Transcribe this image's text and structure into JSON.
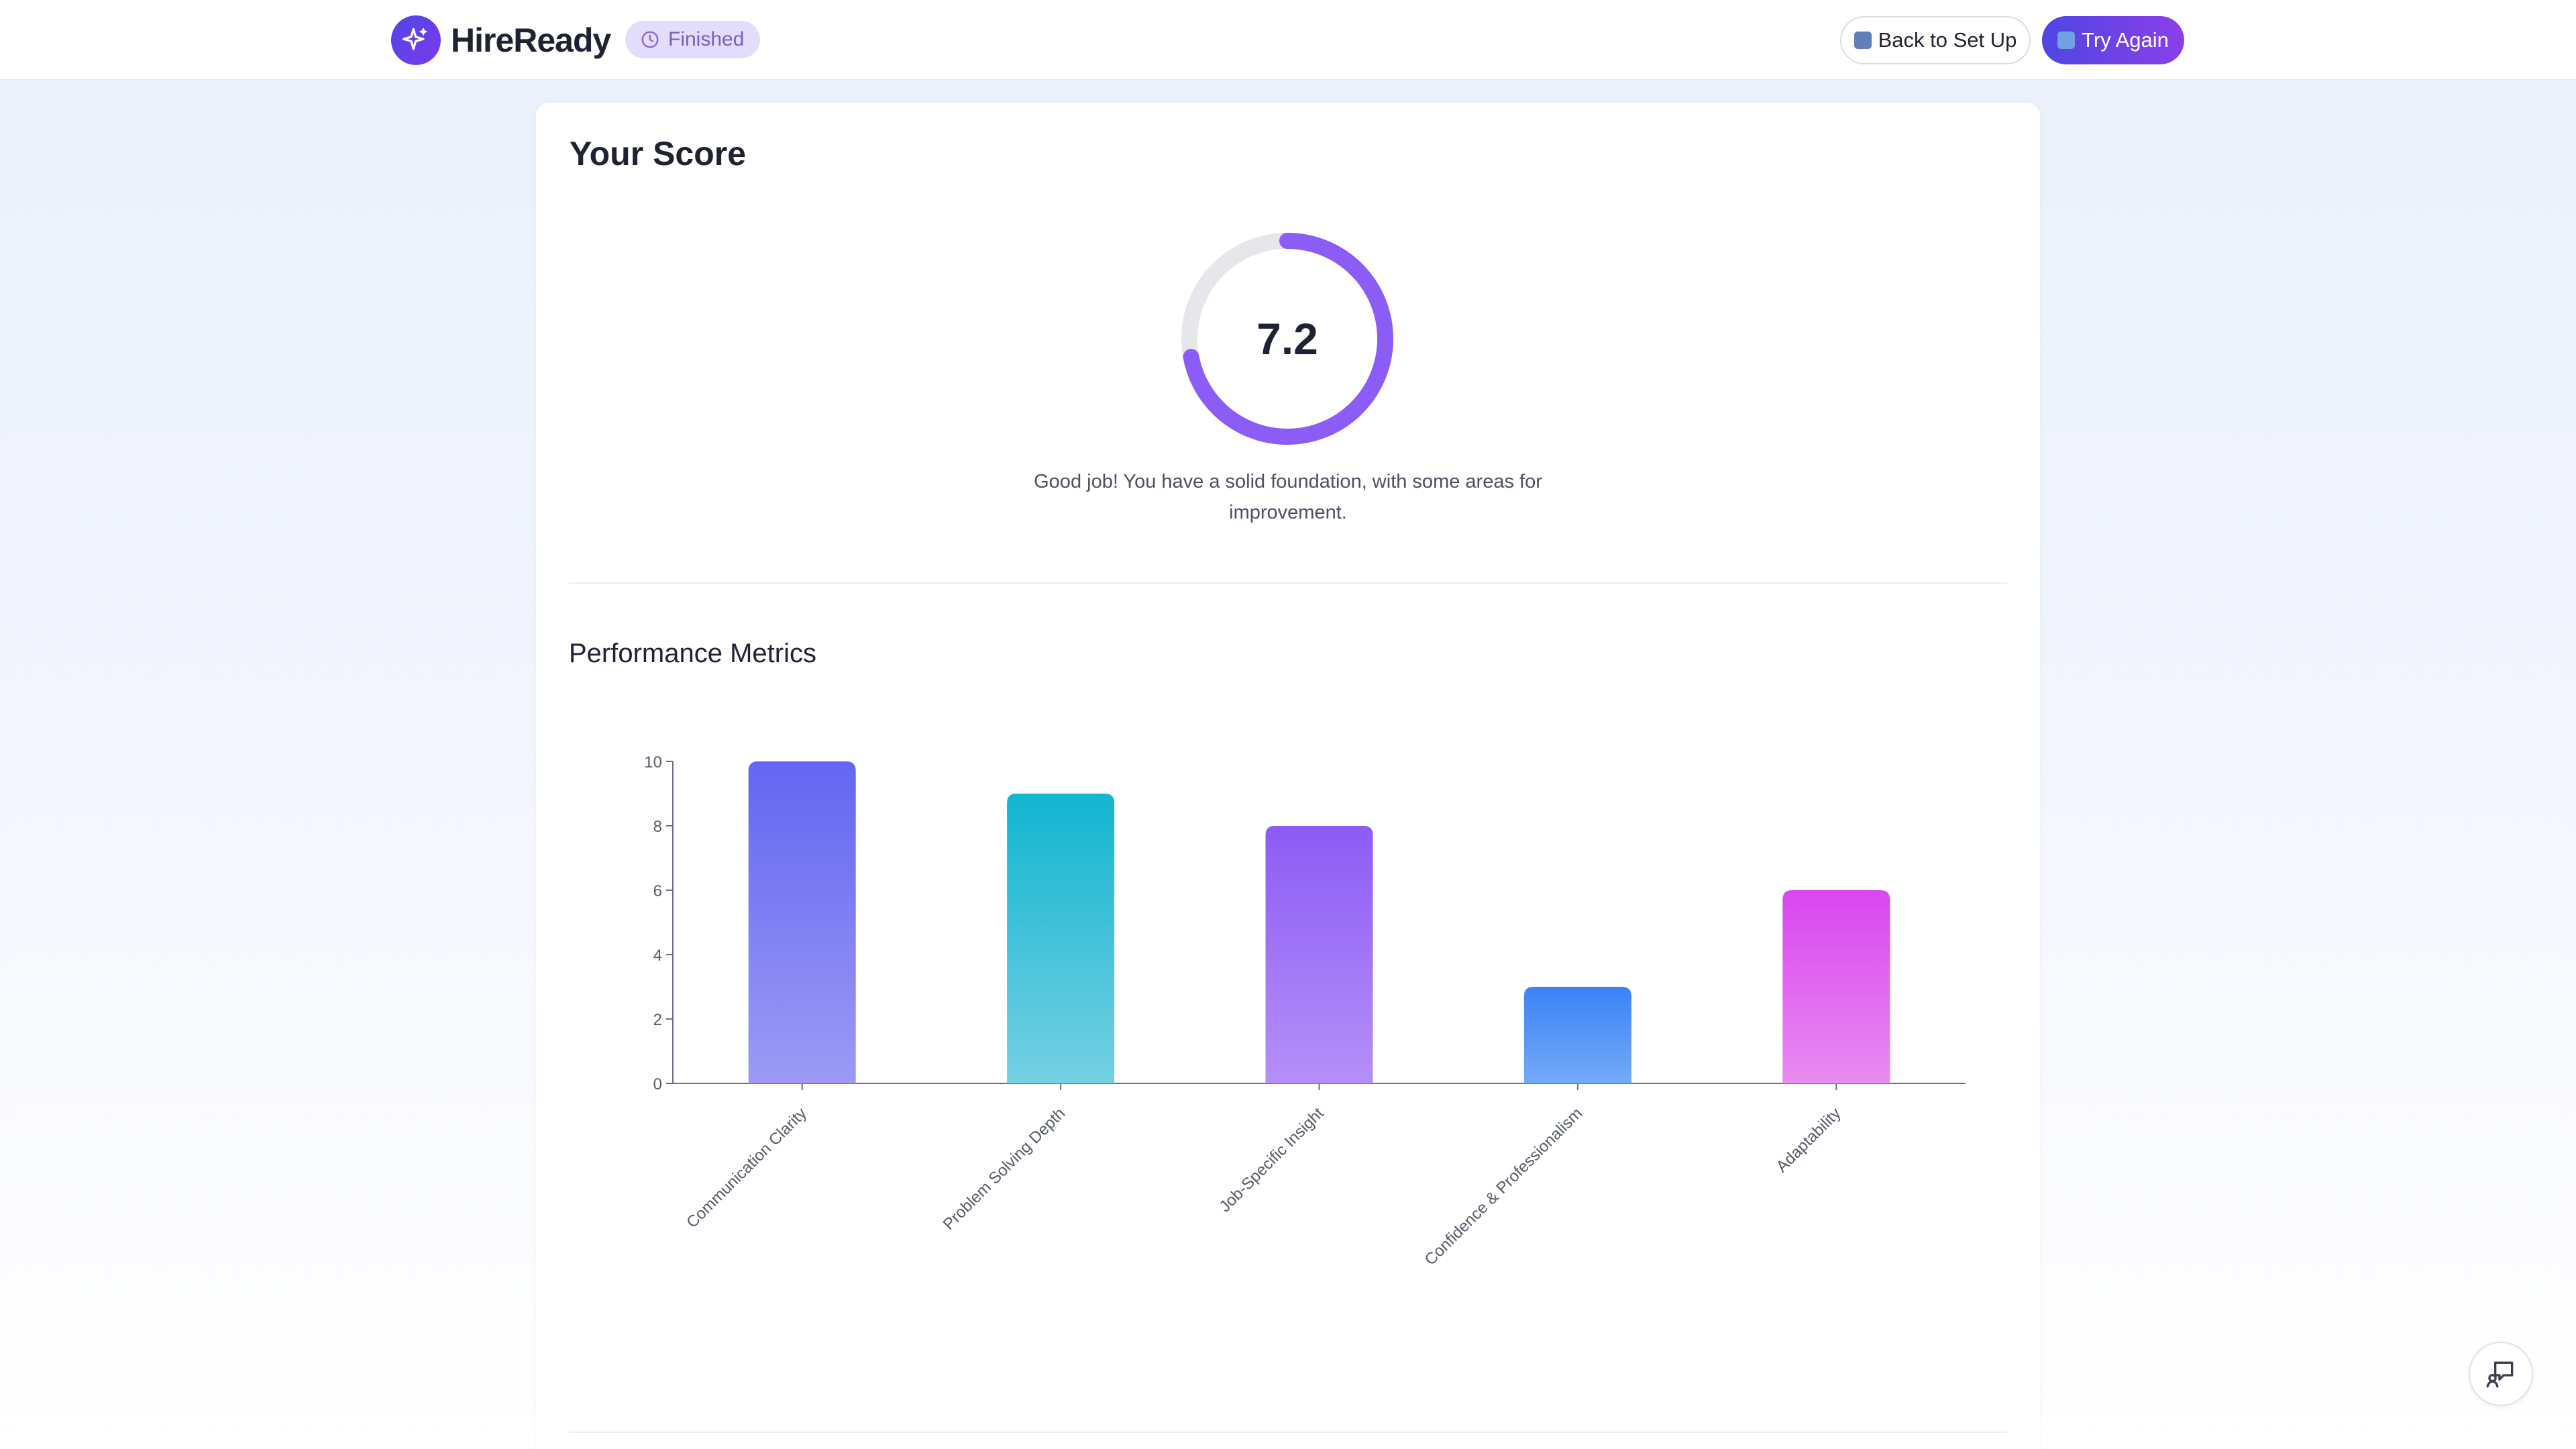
{
  "header": {
    "brand": "HireReady",
    "status": "Finished",
    "back_label": "Back to Set Up",
    "try_again_label": "Try Again",
    "icons": {
      "logo": "sparkle-icon",
      "status": "clock-icon",
      "back": "back-arrow-icon",
      "try_again": "repeat-icon",
      "chat": "feedback-chat-icon"
    }
  },
  "score": {
    "title": "Your Score",
    "value": "7.2",
    "max": 10,
    "message": "Good job! You have a solid foundation, with some areas for improvement.",
    "ring_color": "#8b5cf6",
    "track_color": "#e5e7eb"
  },
  "metrics": {
    "title": "Performance Metrics"
  },
  "chart_data": {
    "type": "bar",
    "categories": [
      "Communication Clarity",
      "Problem Solving Depth",
      "Job-Specific Insight",
      "Confidence & Professionalism",
      "Adaptability"
    ],
    "values": [
      10,
      9,
      8,
      3,
      6
    ],
    "ylim": [
      0,
      10
    ],
    "yticks": [
      0,
      2,
      4,
      6,
      8,
      10
    ],
    "xlabel": "",
    "ylabel": "",
    "grid": false,
    "colors": [
      [
        "#6366f1",
        "#9c9af5"
      ],
      [
        "#13b5d0",
        "#74d0e3"
      ],
      [
        "#8b5cf6",
        "#b58ff8"
      ],
      [
        "#3b82f6",
        "#74aaf8"
      ],
      [
        "#d946ef",
        "#e88cf0"
      ]
    ]
  }
}
